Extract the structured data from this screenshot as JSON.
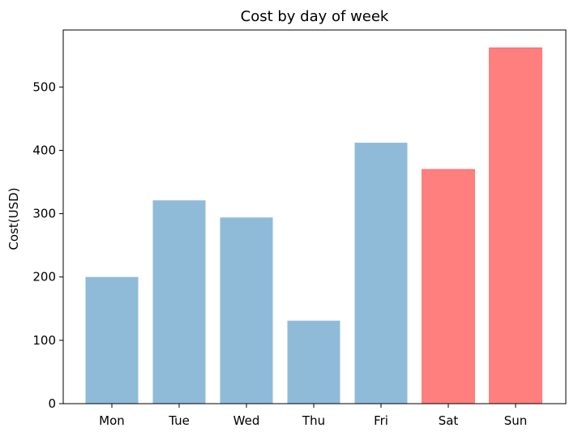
{
  "chart_data": {
    "type": "bar",
    "title": "Cost by day of week",
    "xlabel": "",
    "ylabel": "Cost(USD)",
    "categories": [
      "Mon",
      "Tue",
      "Wed",
      "Thu",
      "Fri",
      "Sat",
      "Sun"
    ],
    "values": [
      200,
      321,
      294,
      131,
      412,
      370,
      562
    ],
    "bar_colors": [
      "#1f77b4",
      "#1f77b4",
      "#1f77b4",
      "#1f77b4",
      "#1f77b4",
      "#ff0000",
      "#ff0000"
    ],
    "bar_alpha": 0.5,
    "ylim": [
      0,
      590
    ],
    "yticks": [
      0,
      100,
      200,
      300,
      400,
      500
    ],
    "grid": false,
    "legend": "none"
  }
}
